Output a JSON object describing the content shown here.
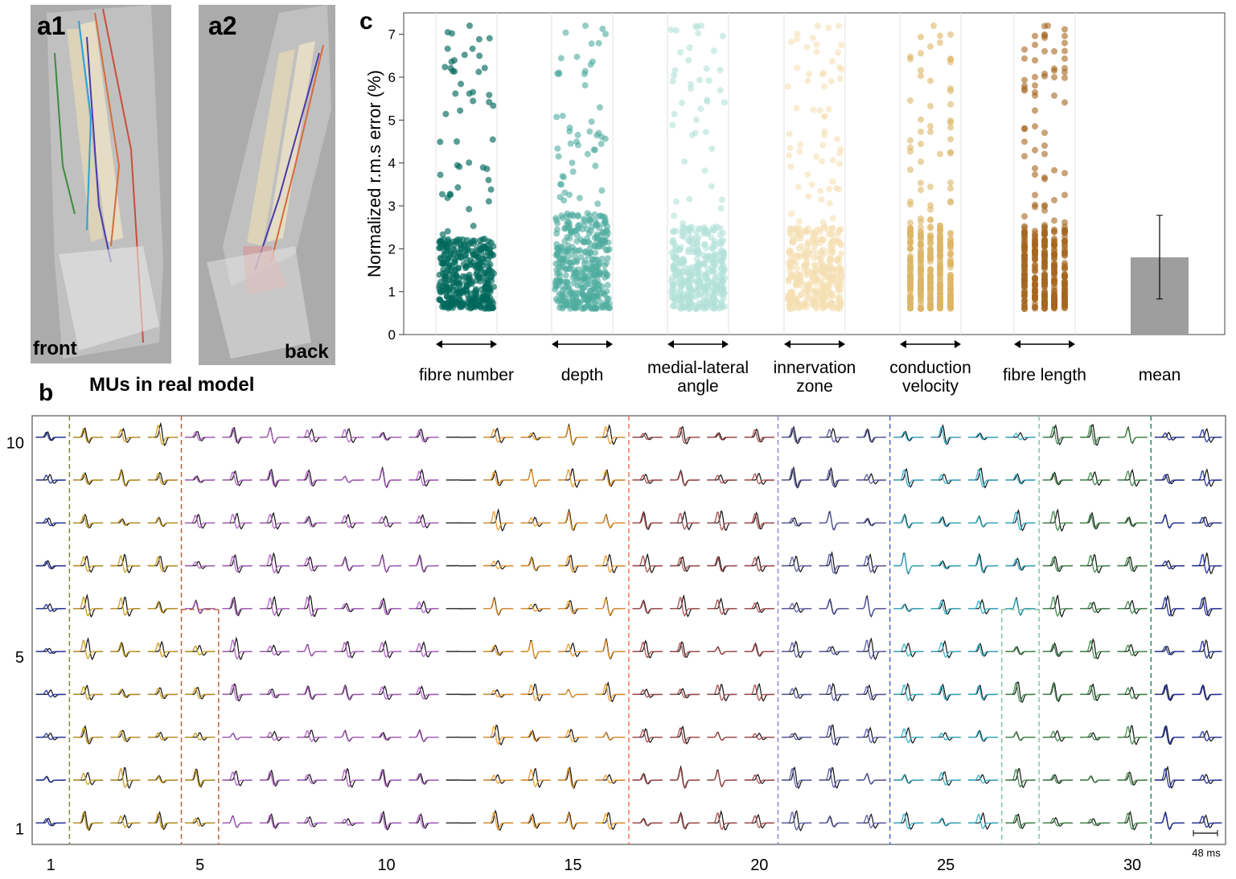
{
  "panels": {
    "a1": {
      "tag": "a1",
      "caption": "front"
    },
    "a2": {
      "tag": "a2",
      "caption": "back"
    },
    "b": {
      "tag": "b",
      "subtitle": "MUs in real model"
    },
    "c": {
      "tag": "c"
    }
  },
  "chart_data": [
    {
      "type": "scatter",
      "panel": "c",
      "title": "",
      "ylabel": "Normalized r.m.s error (%)",
      "ylim": [
        0,
        7.5
      ],
      "yticks": [
        0,
        1,
        2,
        3,
        4,
        5,
        6,
        7
      ],
      "groups": [
        {
          "name": "fibre number",
          "label_lines": [
            "fibre number"
          ],
          "color": "#00685c",
          "opacity": 0.65,
          "style": "cloud",
          "median": 1.6,
          "max": 7.2
        },
        {
          "name": "depth",
          "label_lines": [
            "depth"
          ],
          "color": "#4fab9e",
          "opacity": 0.6,
          "style": "cloud",
          "median": 2.0,
          "max": 7.2
        },
        {
          "name": "medial-lateral angle",
          "label_lines": [
            "medial-lateral",
            "angle"
          ],
          "color": "#b3e1d9",
          "opacity": 0.6,
          "style": "columns",
          "median": 1.8,
          "max": 7.2
        },
        {
          "name": "innervation zone",
          "label_lines": [
            "innervation",
            "zone"
          ],
          "color": "#f5dfb3",
          "opacity": 0.6,
          "style": "columns",
          "median": 1.8,
          "max": 7.2
        },
        {
          "name": "conduction velocity",
          "label_lines": [
            "conduction",
            "velocity"
          ],
          "color": "#dcb665",
          "opacity": 0.6,
          "style": "strips",
          "median": 1.8,
          "max": 7.2
        },
        {
          "name": "fibre length",
          "label_lines": [
            "fibre length"
          ],
          "color": "#a5661e",
          "opacity": 0.6,
          "style": "strips",
          "median": 1.8,
          "max": 7.2
        }
      ],
      "mean_bar": {
        "label": "mean",
        "value": 1.8,
        "error_low": 0.83,
        "error_high": 2.78,
        "color": "#9e9e9e"
      }
    },
    {
      "type": "waveform-grid",
      "panel": "b",
      "x_ticks": [
        "1",
        "5",
        "10",
        "15",
        "20",
        "25",
        "30"
      ],
      "y_ticks": [
        "10",
        "5",
        "1"
      ],
      "columns": 32,
      "rows": 10,
      "scale_bar": "48 ms",
      "groups": [
        {
          "color": "#1f2fa0",
          "columns": [
            1
          ]
        },
        {
          "color": "#c99a1c",
          "columns": [
            2,
            3,
            4
          ],
          "extra_lower_columns": [
            5
          ]
        },
        {
          "color": "#b05fc7",
          "columns": [
            5,
            6,
            7,
            8,
            9,
            10,
            11
          ],
          "lower_start_column": 6
        },
        {
          "color": "#333333",
          "columns": [
            12
          ]
        },
        {
          "color": "#ef9a2a",
          "columns": [
            13,
            14,
            15,
            16
          ]
        },
        {
          "color": "#a84a4a",
          "columns": [
            17,
            18,
            19,
            20
          ]
        },
        {
          "color": "#5a5aa8",
          "columns": [
            21,
            22,
            23
          ]
        },
        {
          "color": "#30b3cc",
          "columns": [
            24,
            25,
            26,
            27
          ]
        },
        {
          "color": "#3f8a4a",
          "columns": [
            28,
            29,
            30
          ]
        },
        {
          "color": "#1f2fa0",
          "columns": [
            31,
            32
          ]
        }
      ],
      "dividers": [
        {
          "after_column": 1,
          "color": "#7a8a3a"
        },
        {
          "after_column": 4,
          "color": "#c2603a"
        },
        {
          "after_column": 16,
          "color": "#ee7755"
        },
        {
          "after_column": 20,
          "color": "#8a88dd"
        },
        {
          "after_column": 23,
          "color": "#4466cc"
        },
        {
          "after_column": 27,
          "color": "#88c4a0"
        },
        {
          "after_column": 30,
          "color": "#2a8a6a"
        }
      ]
    }
  ]
}
